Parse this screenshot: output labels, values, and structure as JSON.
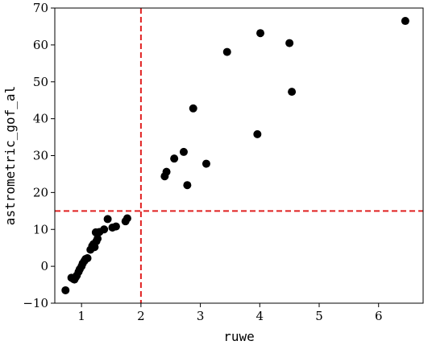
{
  "chart_data": {
    "type": "scatter",
    "xlabel": "ruwe",
    "ylabel": "astrometric_gof_al",
    "xlim": [
      0.55,
      6.75
    ],
    "ylim": [
      -10,
      70
    ],
    "xticks": [
      1,
      2,
      3,
      4,
      5,
      6
    ],
    "yticks": [
      -10,
      0,
      10,
      20,
      30,
      40,
      50,
      60,
      70
    ],
    "xtick_labels": [
      "1",
      "2",
      "3",
      "4",
      "5",
      "6"
    ],
    "ytick_labels": [
      "−10",
      "0",
      "10",
      "20",
      "30",
      "40",
      "50",
      "60",
      "70"
    ],
    "grid": false,
    "marker_color": "#000000",
    "reference_lines": [
      {
        "orientation": "vertical",
        "value": 2,
        "color": "#e02020",
        "style": "dashed"
      },
      {
        "orientation": "horizontal",
        "value": 15,
        "color": "#e02020",
        "style": "dashed"
      }
    ],
    "points": [
      [
        0.73,
        -6.5
      ],
      [
        0.83,
        -3.1
      ],
      [
        0.86,
        -3.4
      ],
      [
        0.88,
        -3.6
      ],
      [
        0.9,
        -3.0
      ],
      [
        0.92,
        -2.5
      ],
      [
        0.95,
        -1.5
      ],
      [
        0.97,
        -0.8
      ],
      [
        1.0,
        0.0
      ],
      [
        1.02,
        0.8
      ],
      [
        1.05,
        1.5
      ],
      [
        1.07,
        2.0
      ],
      [
        1.1,
        2.2
      ],
      [
        1.15,
        4.5
      ],
      [
        1.18,
        5.5
      ],
      [
        1.2,
        6.0
      ],
      [
        1.22,
        5.2
      ],
      [
        1.25,
        6.8
      ],
      [
        1.24,
        9.2
      ],
      [
        1.27,
        7.5
      ],
      [
        1.3,
        9.3
      ],
      [
        1.38,
        10.0
      ],
      [
        1.44,
        12.8
      ],
      [
        1.52,
        10.5
      ],
      [
        1.58,
        10.8
      ],
      [
        1.74,
        12.2
      ],
      [
        1.77,
        13.0
      ],
      [
        2.4,
        24.4
      ],
      [
        2.43,
        25.6
      ],
      [
        2.56,
        29.2
      ],
      [
        2.72,
        31.0
      ],
      [
        2.78,
        22.0
      ],
      [
        2.88,
        42.8
      ],
      [
        3.1,
        27.8
      ],
      [
        3.45,
        58.1
      ],
      [
        3.96,
        35.8
      ],
      [
        4.01,
        63.2
      ],
      [
        4.5,
        60.5
      ],
      [
        4.54,
        47.3
      ],
      [
        6.45,
        66.5
      ]
    ]
  }
}
